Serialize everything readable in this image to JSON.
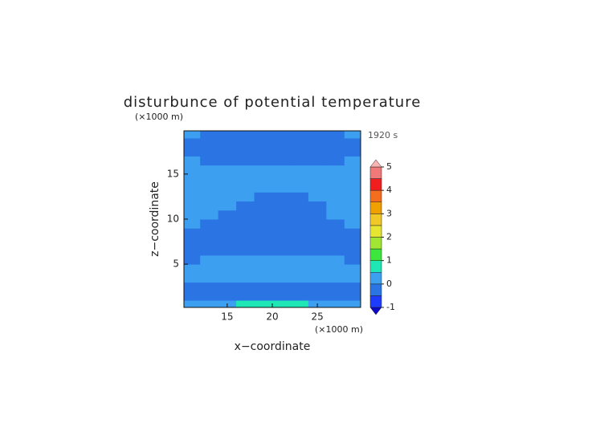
{
  "chart_data": {
    "type": "contour",
    "title": "disturbunce of potential temperature",
    "x_label": "x−coordinate",
    "y_label": "z−coordinate",
    "x_unit": "(×1000 m)",
    "y_unit": "(×1000 m)",
    "time_label": "1920 s",
    "xlim": [
      10.2,
      29.8
    ],
    "ylim": [
      0.2,
      19.8
    ],
    "xticks": [
      15,
      20,
      25
    ],
    "yticks": [
      5,
      10,
      15
    ],
    "x": [
      11,
      13,
      15,
      17,
      19,
      21,
      23,
      25,
      27,
      29
    ],
    "y": [
      0.5,
      1.5,
      2.5,
      3.5,
      4.5,
      5.5,
      6.5,
      7.5,
      8.5,
      9.5,
      10.5,
      11.5,
      12.5,
      13.5,
      14.5,
      15.5,
      16.5,
      17.5,
      18.5,
      19.5
    ],
    "z": [
      [
        0.1,
        0.1,
        0.1,
        0.7,
        0.8,
        0.8,
        0.7,
        0.1,
        0.1,
        0.1
      ],
      [
        -0.1,
        -0.1,
        -0.1,
        -0.1,
        -0.1,
        -0.1,
        -0.1,
        -0.1,
        -0.1,
        -0.1
      ],
      [
        -0.1,
        -0.1,
        -0.1,
        -0.1,
        -0.1,
        -0.1,
        -0.1,
        -0.1,
        -0.1,
        -0.1
      ],
      [
        0.1,
        0.1,
        0.1,
        0.1,
        0.1,
        0.1,
        0.1,
        0.1,
        0.1,
        0.1
      ],
      [
        0.1,
        0.1,
        0.1,
        0.1,
        0.1,
        0.1,
        0.1,
        0.1,
        0.1,
        0.1
      ],
      [
        -0.1,
        0.1,
        0.1,
        0.1,
        0.1,
        0.1,
        0.1,
        0.1,
        0.1,
        -0.1
      ],
      [
        -0.1,
        -0.1,
        -0.1,
        -0.1,
        -0.1,
        -0.1,
        -0.1,
        -0.1,
        -0.1,
        -0.1
      ],
      [
        -0.1,
        -0.1,
        -0.1,
        -0.1,
        -0.1,
        -0.1,
        -0.1,
        -0.1,
        -0.1,
        -0.1
      ],
      [
        -0.1,
        -0.1,
        -0.1,
        -0.1,
        -0.1,
        -0.1,
        -0.1,
        -0.1,
        -0.1,
        -0.1
      ],
      [
        0.1,
        -0.1,
        -0.1,
        -0.1,
        -0.1,
        -0.1,
        -0.1,
        -0.1,
        -0.1,
        0.1
      ],
      [
        0.1,
        0.1,
        -0.1,
        -0.1,
        -0.1,
        -0.1,
        -0.1,
        -0.1,
        0.1,
        0.1
      ],
      [
        0.1,
        0.1,
        0.1,
        -0.1,
        -0.1,
        -0.1,
        -0.1,
        -0.1,
        0.1,
        0.1
      ],
      [
        0.1,
        0.1,
        0.1,
        0.1,
        -0.1,
        -0.1,
        -0.1,
        0.1,
        0.1,
        0.1
      ],
      [
        0.1,
        0.1,
        0.1,
        0.1,
        0.1,
        0.1,
        0.1,
        0.1,
        0.1,
        0.1
      ],
      [
        0.1,
        0.1,
        0.1,
        0.1,
        0.1,
        0.1,
        0.1,
        0.1,
        0.1,
        0.1
      ],
      [
        0.1,
        0.1,
        0.1,
        0.1,
        0.1,
        0.1,
        0.1,
        0.1,
        0.1,
        0.1
      ],
      [
        0.1,
        -0.1,
        -0.1,
        -0.1,
        -0.1,
        -0.1,
        -0.1,
        -0.1,
        -0.1,
        0.1
      ],
      [
        -0.1,
        -0.1,
        -0.1,
        -0.1,
        -0.1,
        -0.1,
        -0.1,
        -0.1,
        -0.1,
        -0.1
      ],
      [
        -0.1,
        -0.1,
        -0.1,
        -0.1,
        -0.1,
        -0.1,
        -0.1,
        -0.1,
        -0.1,
        -0.1
      ],
      [
        0.1,
        -0.1,
        -0.1,
        -0.1,
        -0.1,
        -0.1,
        -0.1,
        -0.1,
        -0.1,
        0.1
      ]
    ],
    "levels": [
      -1,
      -0.5,
      0,
      0.5,
      1,
      1.5,
      2,
      2.5,
      3,
      3.5,
      4,
      4.5,
      5
    ],
    "colors": [
      "#1e3cff",
      "#2b74e4",
      "#3c9ff0",
      "#1ee6b4",
      "#3ce63c",
      "#a0e632",
      "#e6e632",
      "#f0c828",
      "#f0a000",
      "#f56e1e",
      "#f01e1e",
      "#f07a7a"
    ],
    "under_color": "#0a0ac8",
    "over_color": "#fab4b4",
    "colorbar_ticks": [
      -1,
      0,
      1,
      2,
      3,
      4,
      5
    ]
  }
}
